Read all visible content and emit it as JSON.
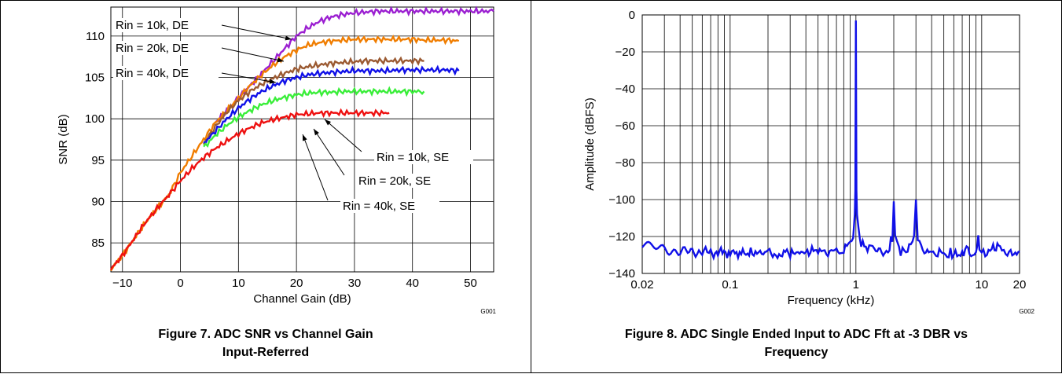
{
  "chart_data": [
    {
      "type": "line",
      "xlabel": "Channel Gain (dB)",
      "ylabel": "SNR (dB)",
      "xlim": [
        -12,
        54
      ],
      "ylim": [
        81.5,
        113.5
      ],
      "xticks": [
        -10,
        0,
        10,
        20,
        30,
        40,
        50
      ],
      "yticks": [
        85,
        90,
        95,
        100,
        105,
        110
      ],
      "grid": true,
      "figure_code": "G001",
      "caption_line1": "Figure 7. ADC SNR vs Channel Gain",
      "caption_line2": "Input-Referred",
      "annotations": [
        "Rin = 10k, DE",
        "Rin = 20k, DE",
        "Rin = 40k, DE",
        "Rin = 10k, SE",
        "Rin = 20k, SE",
        "Rin = 40k, SE"
      ],
      "series": [
        {
          "color": "#9b1fd1",
          "x": [
            6,
            8,
            10,
            12,
            14,
            16,
            18,
            20,
            22,
            24,
            26,
            28,
            30,
            32,
            34,
            36,
            38,
            40,
            42,
            44,
            46,
            48,
            50,
            52,
            54
          ],
          "y": [
            99.5,
            101,
            102.5,
            104,
            105.5,
            107,
            108.5,
            110,
            111,
            111.8,
            112.3,
            112.6,
            112.8,
            112.9,
            113,
            113,
            113,
            113,
            113,
            113,
            113,
            113,
            113,
            113,
            113
          ]
        },
        {
          "color": "#f07d00",
          "x": [
            -12,
            -10,
            -8,
            -6,
            -4,
            -2,
            0,
            2,
            4,
            6,
            8,
            10,
            12,
            14,
            16,
            18,
            20,
            22,
            24,
            26,
            28,
            30,
            32,
            34,
            36,
            38,
            40,
            42,
            44,
            46,
            48
          ],
          "y": [
            81.8,
            83.5,
            85.5,
            87.5,
            89.2,
            90.8,
            93.5,
            95.5,
            97.5,
            99.5,
            101,
            102.5,
            104,
            105.3,
            106.5,
            107.5,
            108.3,
            108.9,
            109.2,
            109.4,
            109.5,
            109.6,
            109.6,
            109.6,
            109.6,
            109.6,
            109.6,
            109.5,
            109.5,
            109.5,
            109.4
          ]
        },
        {
          "color": "#9b5a32",
          "x": [
            4,
            6,
            8,
            10,
            12,
            14,
            16,
            18,
            20,
            22,
            24,
            26,
            28,
            30,
            32,
            34,
            36,
            38,
            40,
            42
          ],
          "y": [
            97,
            99,
            100.8,
            102.2,
            103.3,
            104.2,
            104.9,
            105.5,
            106,
            106.3,
            106.5,
            106.7,
            106.8,
            106.9,
            107,
            107,
            107,
            107,
            107,
            107
          ]
        },
        {
          "color": "#1010e8",
          "x": [
            4,
            6,
            8,
            10,
            12,
            14,
            16,
            18,
            20,
            22,
            24,
            26,
            28,
            30,
            32,
            34,
            36,
            38,
            40,
            42,
            44,
            46,
            48
          ],
          "y": [
            97,
            98.5,
            100,
            101.3,
            102.4,
            103.3,
            104,
            104.6,
            105,
            105.3,
            105.5,
            105.6,
            105.7,
            105.8,
            105.8,
            105.8,
            105.8,
            105.9,
            105.9,
            105.9,
            105.9,
            105.9,
            105.8
          ]
        },
        {
          "color": "#3aee3a",
          "x": [
            4,
            6,
            8,
            10,
            12,
            14,
            16,
            18,
            20,
            22,
            24,
            26,
            28,
            30,
            32,
            34,
            36,
            38,
            40,
            42
          ],
          "y": [
            96.5,
            98,
            99.2,
            100.2,
            101,
            101.7,
            102.2,
            102.6,
            102.9,
            103.1,
            103.2,
            103.2,
            103.3,
            103.3,
            103.3,
            103.3,
            103.3,
            103.3,
            103.3,
            103.3
          ]
        },
        {
          "color": "#ee1010",
          "x": [
            -12,
            -10,
            -8,
            -6,
            -4,
            -2,
            0,
            2,
            4,
            6,
            8,
            10,
            12,
            14,
            16,
            18,
            20,
            22,
            24,
            26,
            28,
            30,
            32,
            34,
            36
          ],
          "y": [
            81.8,
            83.5,
            85.5,
            87.5,
            89.2,
            90.8,
            92.5,
            94,
            95.3,
            96.4,
            97.3,
            98.2,
            98.9,
            99.5,
            99.9,
            100.2,
            100.5,
            100.6,
            100.7,
            100.7,
            100.7,
            100.7,
            100.7,
            100.7,
            100.7
          ]
        }
      ]
    },
    {
      "type": "line",
      "xlabel": "Frequency (kHz)",
      "ylabel": "Amplitude (dBFS)",
      "xscale": "log",
      "xlim": [
        0.02,
        20
      ],
      "ylim": [
        -140,
        0
      ],
      "xticks": [
        0.02,
        0.1,
        1,
        10,
        20
      ],
      "xtick_labels": [
        "0.02",
        "0.1",
        "1",
        "10",
        "20"
      ],
      "yticks": [
        0,
        -20,
        -40,
        -60,
        -80,
        -100,
        -120,
        -140
      ],
      "ytick_labels": [
        "0",
        "−20",
        "−40",
        "−60",
        "−80",
        "−100",
        "−120",
        "−140"
      ],
      "grid": true,
      "figure_code": "G002",
      "caption_line1": "Figure 8. ADC Single Ended Input to ADC Fft at -3 DBR vs",
      "caption_line2": "Frequency",
      "series": [
        {
          "color": "#1010e8",
          "x": [
            0.02,
            0.025,
            0.03,
            0.04,
            0.05,
            0.06,
            0.07,
            0.08,
            0.1,
            0.15,
            0.2,
            0.3,
            0.4,
            0.5,
            0.6,
            0.7,
            0.8,
            0.9,
            0.95,
            0.98,
            0.99,
            1.0,
            1.01,
            1.02,
            1.05,
            1.1,
            1.2,
            1.4,
            1.6,
            1.8,
            1.95,
            2.0,
            2.05,
            2.2,
            2.5,
            2.9,
            3.0,
            3.1,
            3.5,
            4,
            5,
            6,
            7,
            8,
            9,
            9.4,
            9.6,
            10,
            11,
            12,
            13,
            14,
            15,
            16,
            17,
            18,
            19,
            20
          ],
          "y": [
            -125,
            -126,
            -127,
            -128,
            -128.5,
            -128,
            -129,
            -128.5,
            -129,
            -129,
            -128.5,
            -129,
            -128.5,
            -128,
            -128.5,
            -127,
            -126,
            -123,
            -120,
            -108,
            -95,
            -3,
            -95,
            -108,
            -118,
            -124,
            -127,
            -128,
            -128.5,
            -128,
            -120,
            -101,
            -120,
            -128,
            -128.5,
            -120,
            -100,
            -120,
            -128,
            -128.5,
            -129,
            -128.5,
            -128.5,
            -128,
            -128,
            -122,
            -128,
            -128.5,
            -128,
            -127,
            -126,
            -124,
            -127,
            -128,
            -127,
            -128,
            -128,
            -128
          ]
        }
      ]
    }
  ]
}
